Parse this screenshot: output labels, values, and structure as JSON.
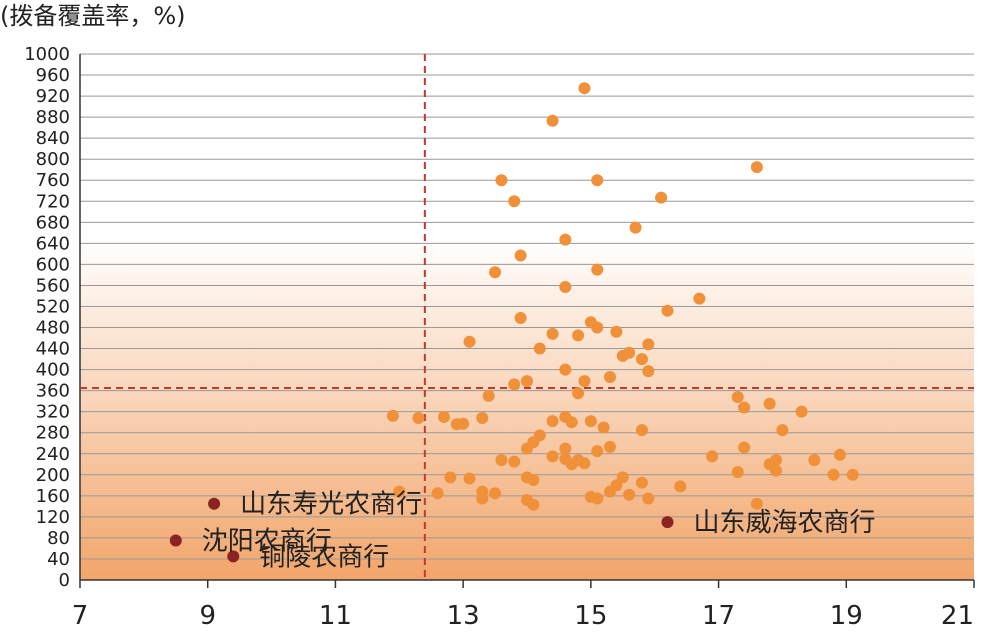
{
  "chart_data": {
    "type": "scatter",
    "title": "",
    "ylabel": "(拨备覆盖率，%)",
    "xlabel": "",
    "xlim": [
      7,
      21
    ],
    "ylim": [
      0,
      1000
    ],
    "x_ticks": [
      7,
      9,
      11,
      13,
      15,
      17,
      19,
      21
    ],
    "y_ticks": [
      0,
      40,
      80,
      120,
      160,
      200,
      240,
      280,
      320,
      360,
      400,
      440,
      480,
      520,
      560,
      600,
      640,
      680,
      720,
      760,
      800,
      840,
      880,
      920,
      960,
      1000
    ],
    "grid": "horizontal",
    "colors": {
      "points": "#f0913a",
      "highlight": "#8b2323",
      "ref_line": "#c0392b",
      "bg_bottom": "#f2a56a"
    },
    "reference_lines": {
      "x": 12.4,
      "y": 365
    },
    "series": [
      {
        "values": [
          [
            14.9,
            935
          ],
          [
            14.4,
            873
          ],
          [
            17.6,
            785
          ],
          [
            13.6,
            760
          ],
          [
            15.1,
            760
          ],
          [
            13.8,
            720
          ],
          [
            16.1,
            727
          ],
          [
            15.7,
            670
          ],
          [
            14.6,
            647
          ],
          [
            13.9,
            617
          ],
          [
            13.5,
            585
          ],
          [
            15.1,
            590
          ],
          [
            14.6,
            557
          ],
          [
            16.7,
            535
          ],
          [
            16.2,
            512
          ],
          [
            13.9,
            498
          ],
          [
            15.0,
            490
          ],
          [
            15.1,
            480
          ],
          [
            14.4,
            468
          ],
          [
            14.8,
            465
          ],
          [
            15.4,
            472
          ],
          [
            13.1,
            453
          ],
          [
            14.2,
            440
          ],
          [
            15.9,
            448
          ],
          [
            15.6,
            432
          ],
          [
            15.5,
            426
          ],
          [
            15.8,
            420
          ],
          [
            14.6,
            400
          ],
          [
            15.9,
            397
          ],
          [
            15.3,
            386
          ],
          [
            14.0,
            378
          ],
          [
            13.8,
            372
          ],
          [
            14.9,
            378
          ],
          [
            13.4,
            350
          ],
          [
            14.8,
            355
          ],
          [
            17.3,
            348
          ],
          [
            17.4,
            328
          ],
          [
            17.8,
            335
          ],
          [
            18.3,
            320
          ],
          [
            11.9,
            312
          ],
          [
            12.3,
            308
          ],
          [
            12.7,
            310
          ],
          [
            12.9,
            296
          ],
          [
            13.0,
            297
          ],
          [
            13.3,
            308
          ],
          [
            14.4,
            302
          ],
          [
            14.6,
            310
          ],
          [
            14.7,
            300
          ],
          [
            15.0,
            302
          ],
          [
            15.2,
            290
          ],
          [
            15.8,
            285
          ],
          [
            18.0,
            285
          ],
          [
            14.2,
            275
          ],
          [
            14.1,
            262
          ],
          [
            14.0,
            250
          ],
          [
            14.6,
            250
          ],
          [
            15.3,
            253
          ],
          [
            15.1,
            245
          ],
          [
            17.4,
            252
          ],
          [
            13.6,
            228
          ],
          [
            13.8,
            225
          ],
          [
            14.4,
            235
          ],
          [
            14.6,
            230
          ],
          [
            14.7,
            220
          ],
          [
            14.8,
            228
          ],
          [
            14.9,
            222
          ],
          [
            16.9,
            235
          ],
          [
            17.8,
            220
          ],
          [
            17.9,
            228
          ],
          [
            18.5,
            228
          ],
          [
            18.9,
            238
          ],
          [
            12.8,
            195
          ],
          [
            13.1,
            193
          ],
          [
            14.0,
            195
          ],
          [
            14.1,
            190
          ],
          [
            15.5,
            195
          ],
          [
            15.8,
            185
          ],
          [
            17.3,
            205
          ],
          [
            17.9,
            208
          ],
          [
            18.8,
            200
          ],
          [
            19.1,
            200
          ],
          [
            12.0,
            168
          ],
          [
            12.6,
            165
          ],
          [
            13.3,
            168
          ],
          [
            13.5,
            165
          ],
          [
            13.3,
            155
          ],
          [
            14.0,
            152
          ],
          [
            14.1,
            143
          ],
          [
            15.0,
            158
          ],
          [
            15.1,
            155
          ],
          [
            15.3,
            168
          ],
          [
            15.4,
            180
          ],
          [
            15.6,
            162
          ],
          [
            15.9,
            155
          ],
          [
            16.4,
            178
          ],
          [
            17.6,
            145
          ]
        ]
      },
      {
        "values": [
          [
            9.1,
            145
          ],
          [
            8.5,
            75
          ],
          [
            9.4,
            45
          ],
          [
            16.2,
            110
          ]
        ]
      }
    ],
    "annotations": [
      {
        "text": "山东寿光农商行",
        "x": 9.1,
        "y": 145
      },
      {
        "text": "沈阳农商行",
        "x": 8.5,
        "y": 75
      },
      {
        "text": "铜陵农商行",
        "x": 9.4,
        "y": 45
      },
      {
        "text": "山东威海农商行",
        "x": 16.2,
        "y": 110
      }
    ]
  }
}
